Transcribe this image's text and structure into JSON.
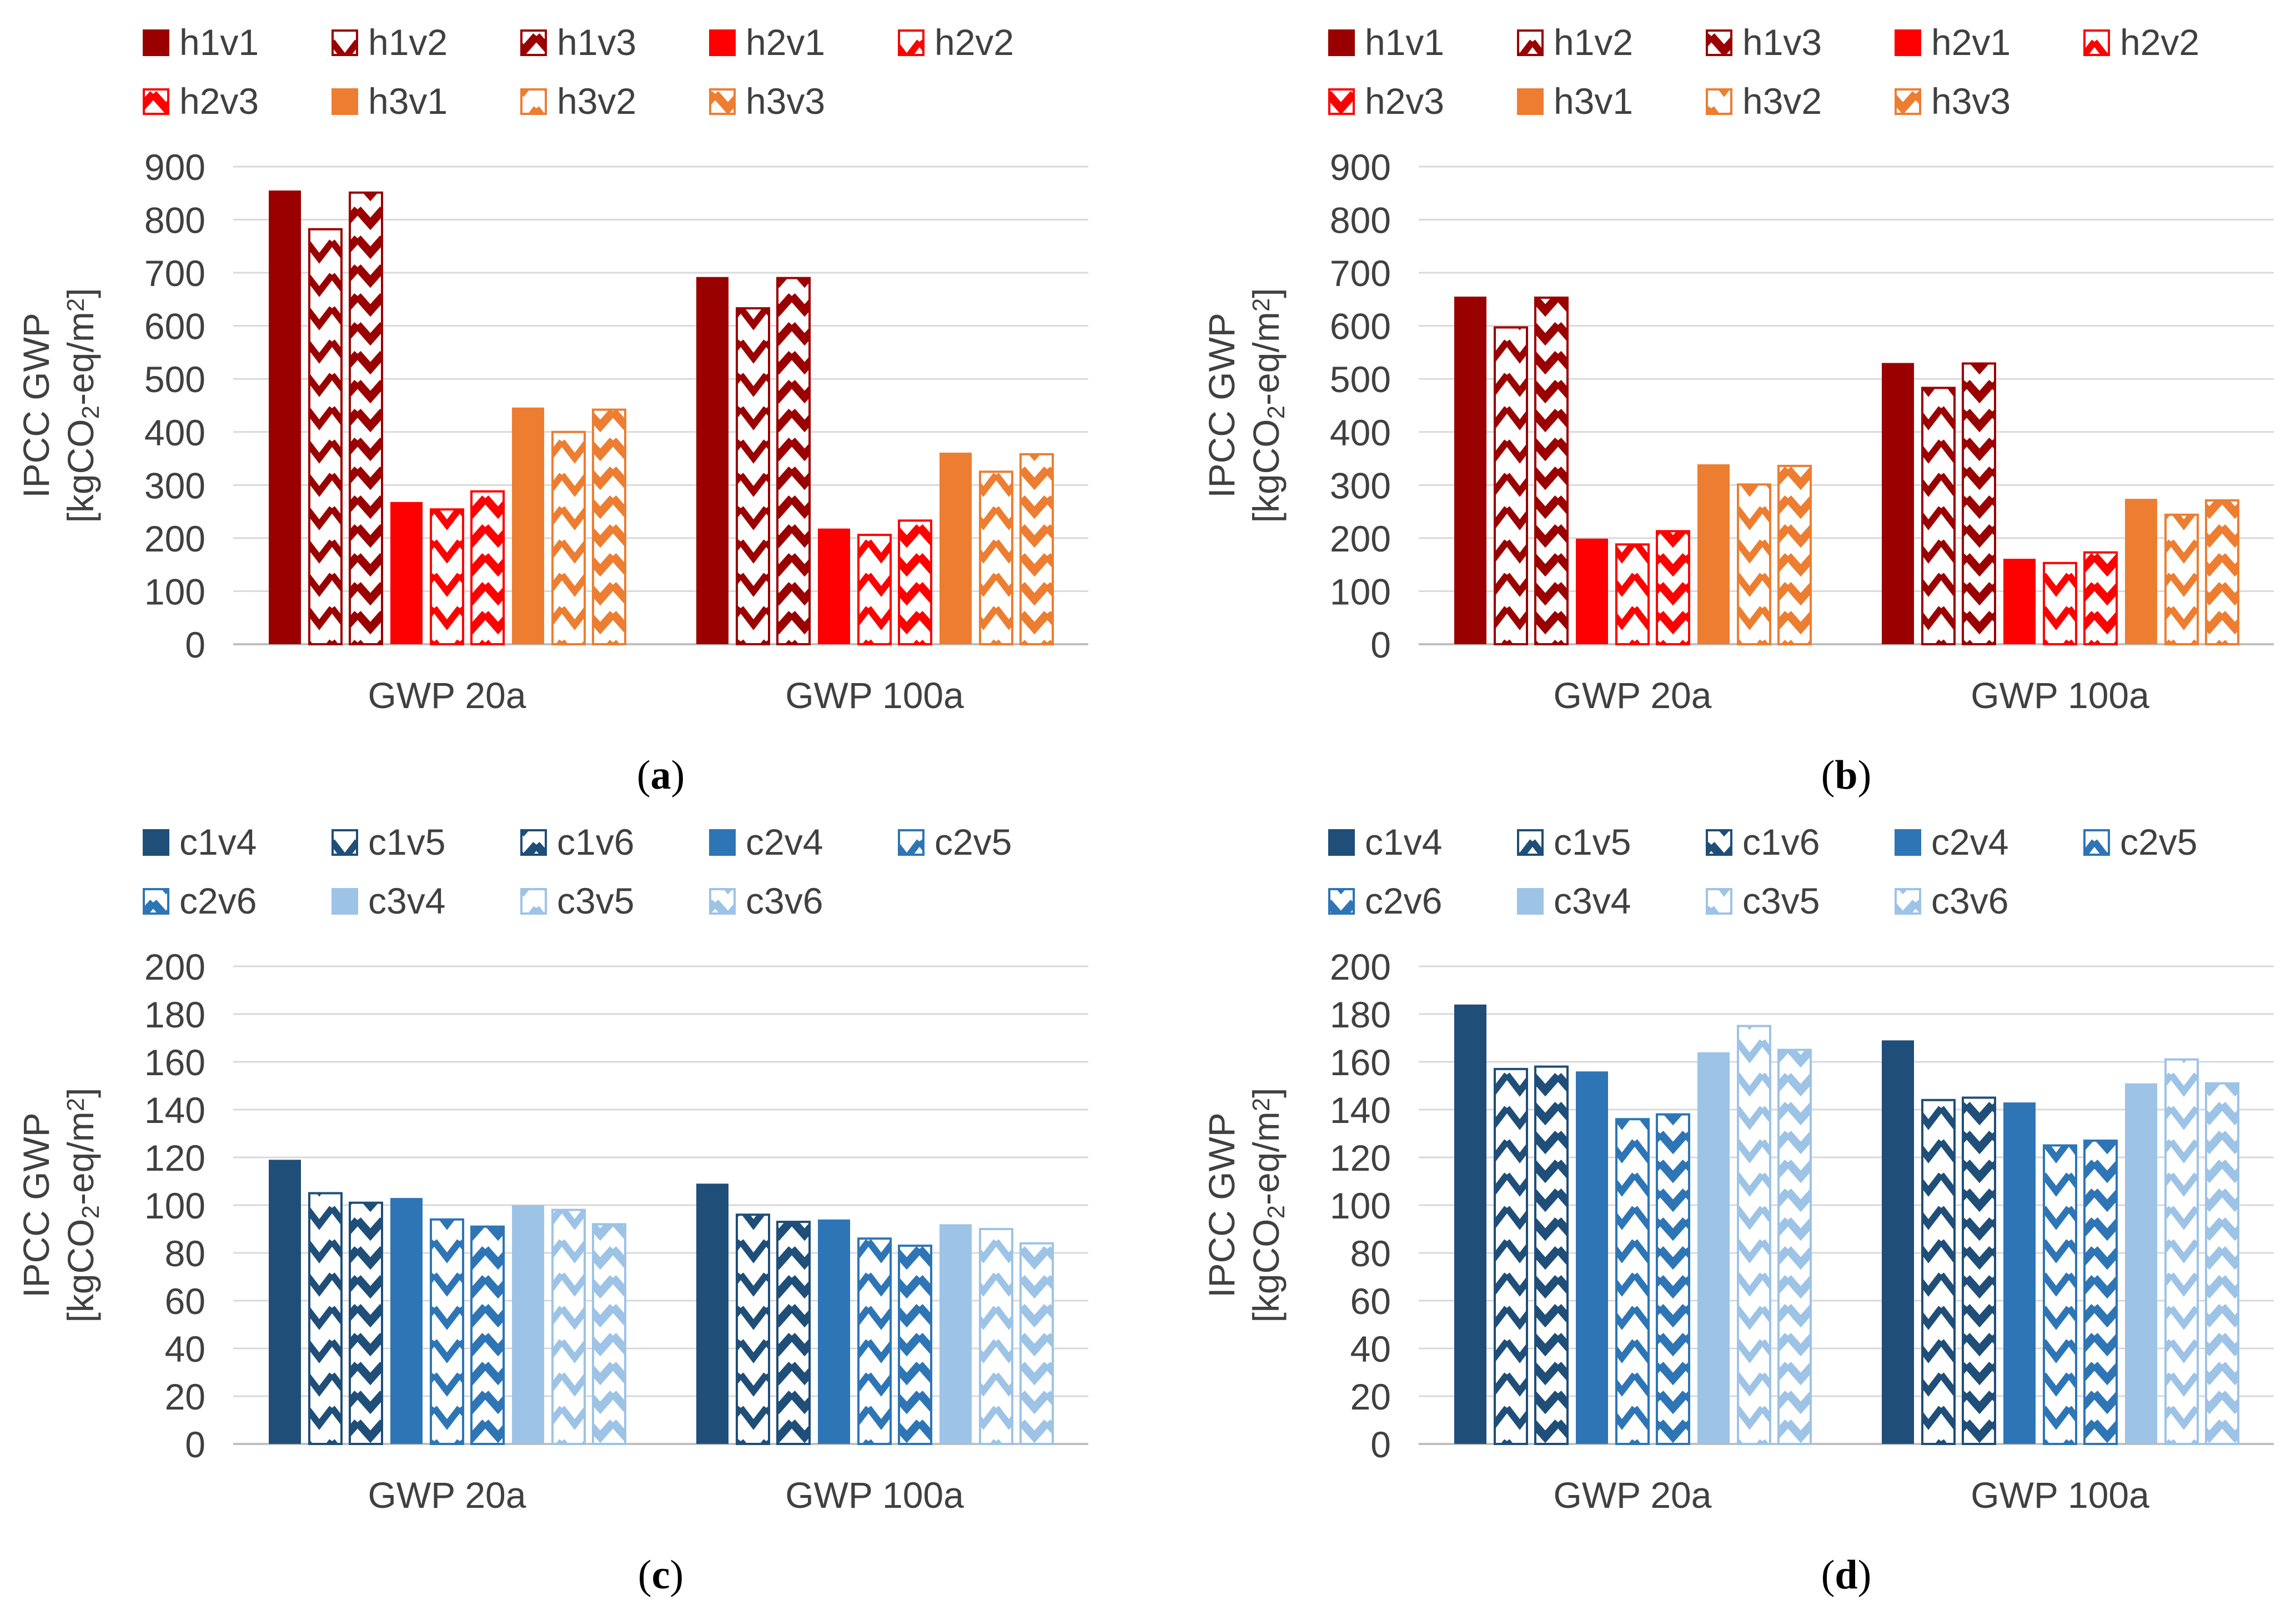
{
  "figure": {
    "y_axis_label_line1": "IPCC GWP",
    "y_axis_label_line2_prefix": "[kgCO",
    "y_axis_label_line2_sub": "2",
    "y_axis_label_line2_mid": "-eq/m",
    "y_axis_label_line2_sup": "2",
    "y_axis_label_line2_suffix": "]"
  },
  "colors": {
    "dark_red": "#9b0000",
    "red": "#ff0000",
    "orange": "#ed7d31",
    "navy": "#1f4e79",
    "blue": "#2e75b6",
    "light_blue": "#9dc3e6",
    "gridline": "#d9d9d9",
    "text": "#404040"
  },
  "chart_data": [
    {
      "type": "bar",
      "panel_label": "(a)",
      "panel_letter": "a",
      "categories": [
        "GWP 20a",
        "GWP 100a"
      ],
      "ylim": [
        0,
        900
      ],
      "yticks": [
        0,
        100,
        200,
        300,
        400,
        500,
        600,
        700,
        800,
        900
      ],
      "ylabel": "IPCC GWP [kgCO2-eq/m2]",
      "grid": true,
      "legend_position": "top",
      "series": [
        {
          "name": "h1v1",
          "color": "#9b0000",
          "pattern": "solid",
          "values": [
            855,
            692
          ]
        },
        {
          "name": "h1v2",
          "color": "#9b0000",
          "pattern": "hatch",
          "values": [
            782,
            633
          ]
        },
        {
          "name": "h1v3",
          "color": "#9b0000",
          "pattern": "hatch-dense",
          "values": [
            851,
            690
          ]
        },
        {
          "name": "h2v1",
          "color": "#ff0000",
          "pattern": "solid",
          "values": [
            268,
            218
          ]
        },
        {
          "name": "h2v2",
          "color": "#ff0000",
          "pattern": "hatch",
          "values": [
            254,
            206
          ]
        },
        {
          "name": "h2v3",
          "color": "#ff0000",
          "pattern": "hatch-dense",
          "values": [
            288,
            233
          ]
        },
        {
          "name": "h3v1",
          "color": "#ed7d31",
          "pattern": "solid",
          "values": [
            446,
            361
          ]
        },
        {
          "name": "h3v2",
          "color": "#ed7d31",
          "pattern": "hatch",
          "values": [
            400,
            325
          ]
        },
        {
          "name": "h3v3",
          "color": "#ed7d31",
          "pattern": "hatch-dense",
          "values": [
            442,
            358
          ]
        }
      ]
    },
    {
      "type": "bar",
      "panel_label": "(b)",
      "panel_letter": "b",
      "categories": [
        "GWP 20a",
        "GWP 100a"
      ],
      "ylim": [
        0,
        900
      ],
      "yticks": [
        0,
        100,
        200,
        300,
        400,
        500,
        600,
        700,
        800,
        900
      ],
      "ylabel": "IPCC GWP [kgCO2-eq/m2]",
      "grid": true,
      "legend_position": "top",
      "series": [
        {
          "name": "h1v1",
          "color": "#9b0000",
          "pattern": "solid",
          "values": [
            655,
            530
          ]
        },
        {
          "name": "h1v2",
          "color": "#9b0000",
          "pattern": "hatch",
          "values": [
            597,
            483
          ]
        },
        {
          "name": "h1v3",
          "color": "#9b0000",
          "pattern": "hatch-dense",
          "values": [
            653,
            529
          ]
        },
        {
          "name": "h2v1",
          "color": "#ff0000",
          "pattern": "solid",
          "values": [
            199,
            161
          ]
        },
        {
          "name": "h2v2",
          "color": "#ff0000",
          "pattern": "hatch",
          "values": [
            188,
            153
          ]
        },
        {
          "name": "h2v3",
          "color": "#ff0000",
          "pattern": "hatch-dense",
          "values": [
            213,
            173
          ]
        },
        {
          "name": "h3v1",
          "color": "#ed7d31",
          "pattern": "solid",
          "values": [
            339,
            274
          ]
        },
        {
          "name": "h3v2",
          "color": "#ed7d31",
          "pattern": "hatch",
          "values": [
            301,
            244
          ]
        },
        {
          "name": "h3v3",
          "color": "#ed7d31",
          "pattern": "hatch-dense",
          "values": [
            336,
            271
          ]
        }
      ]
    },
    {
      "type": "bar",
      "panel_label": "(c)",
      "panel_letter": "c",
      "categories": [
        "GWP 20a",
        "GWP 100a"
      ],
      "ylim": [
        0,
        200
      ],
      "yticks": [
        0,
        20,
        40,
        60,
        80,
        100,
        120,
        140,
        160,
        180,
        200
      ],
      "ylabel": "IPCC GWP [kgCO2-eq/m2]",
      "grid": true,
      "legend_position": "top",
      "series": [
        {
          "name": "c1v4",
          "color": "#1f4e79",
          "pattern": "solid",
          "values": [
            119,
            109
          ]
        },
        {
          "name": "c1v5",
          "color": "#1f4e79",
          "pattern": "hatch",
          "values": [
            105,
            96
          ]
        },
        {
          "name": "c1v6",
          "color": "#1f4e79",
          "pattern": "hatch-dense",
          "values": [
            101,
            93
          ]
        },
        {
          "name": "c2v4",
          "color": "#2e75b6",
          "pattern": "solid",
          "values": [
            103,
            94
          ]
        },
        {
          "name": "c2v5",
          "color": "#2e75b6",
          "pattern": "hatch",
          "values": [
            94,
            86
          ]
        },
        {
          "name": "c2v6",
          "color": "#2e75b6",
          "pattern": "hatch-dense",
          "values": [
            91,
            83
          ]
        },
        {
          "name": "c3v4",
          "color": "#9dc3e6",
          "pattern": "solid",
          "values": [
            100,
            92
          ]
        },
        {
          "name": "c3v5",
          "color": "#9dc3e6",
          "pattern": "hatch",
          "values": [
            98,
            90
          ]
        },
        {
          "name": "c3v6",
          "color": "#9dc3e6",
          "pattern": "hatch-dense",
          "values": [
            92,
            84
          ]
        }
      ]
    },
    {
      "type": "bar",
      "panel_label": "(d)",
      "panel_letter": "d",
      "categories": [
        "GWP 20a",
        "GWP 100a"
      ],
      "ylim": [
        0,
        200
      ],
      "yticks": [
        0,
        20,
        40,
        60,
        80,
        100,
        120,
        140,
        160,
        180,
        200
      ],
      "ylabel": "IPCC GWP [kgCO2-eq/m2]",
      "grid": true,
      "legend_position": "top",
      "series": [
        {
          "name": "c1v4",
          "color": "#1f4e79",
          "pattern": "solid",
          "values": [
            184,
            169
          ]
        },
        {
          "name": "c1v5",
          "color": "#1f4e79",
          "pattern": "hatch",
          "values": [
            157,
            144
          ]
        },
        {
          "name": "c1v6",
          "color": "#1f4e79",
          "pattern": "hatch-dense",
          "values": [
            158,
            145
          ]
        },
        {
          "name": "c2v4",
          "color": "#2e75b6",
          "pattern": "solid",
          "values": [
            156,
            143
          ]
        },
        {
          "name": "c2v5",
          "color": "#2e75b6",
          "pattern": "hatch",
          "values": [
            136,
            125
          ]
        },
        {
          "name": "c2v6",
          "color": "#2e75b6",
          "pattern": "hatch-dense",
          "values": [
            138,
            127
          ]
        },
        {
          "name": "c3v4",
          "color": "#9dc3e6",
          "pattern": "solid",
          "values": [
            164,
            151
          ]
        },
        {
          "name": "c3v5",
          "color": "#9dc3e6",
          "pattern": "hatch",
          "values": [
            175,
            161
          ]
        },
        {
          "name": "c3v6",
          "color": "#9dc3e6",
          "pattern": "hatch-dense",
          "values": [
            165,
            151
          ]
        }
      ]
    }
  ]
}
